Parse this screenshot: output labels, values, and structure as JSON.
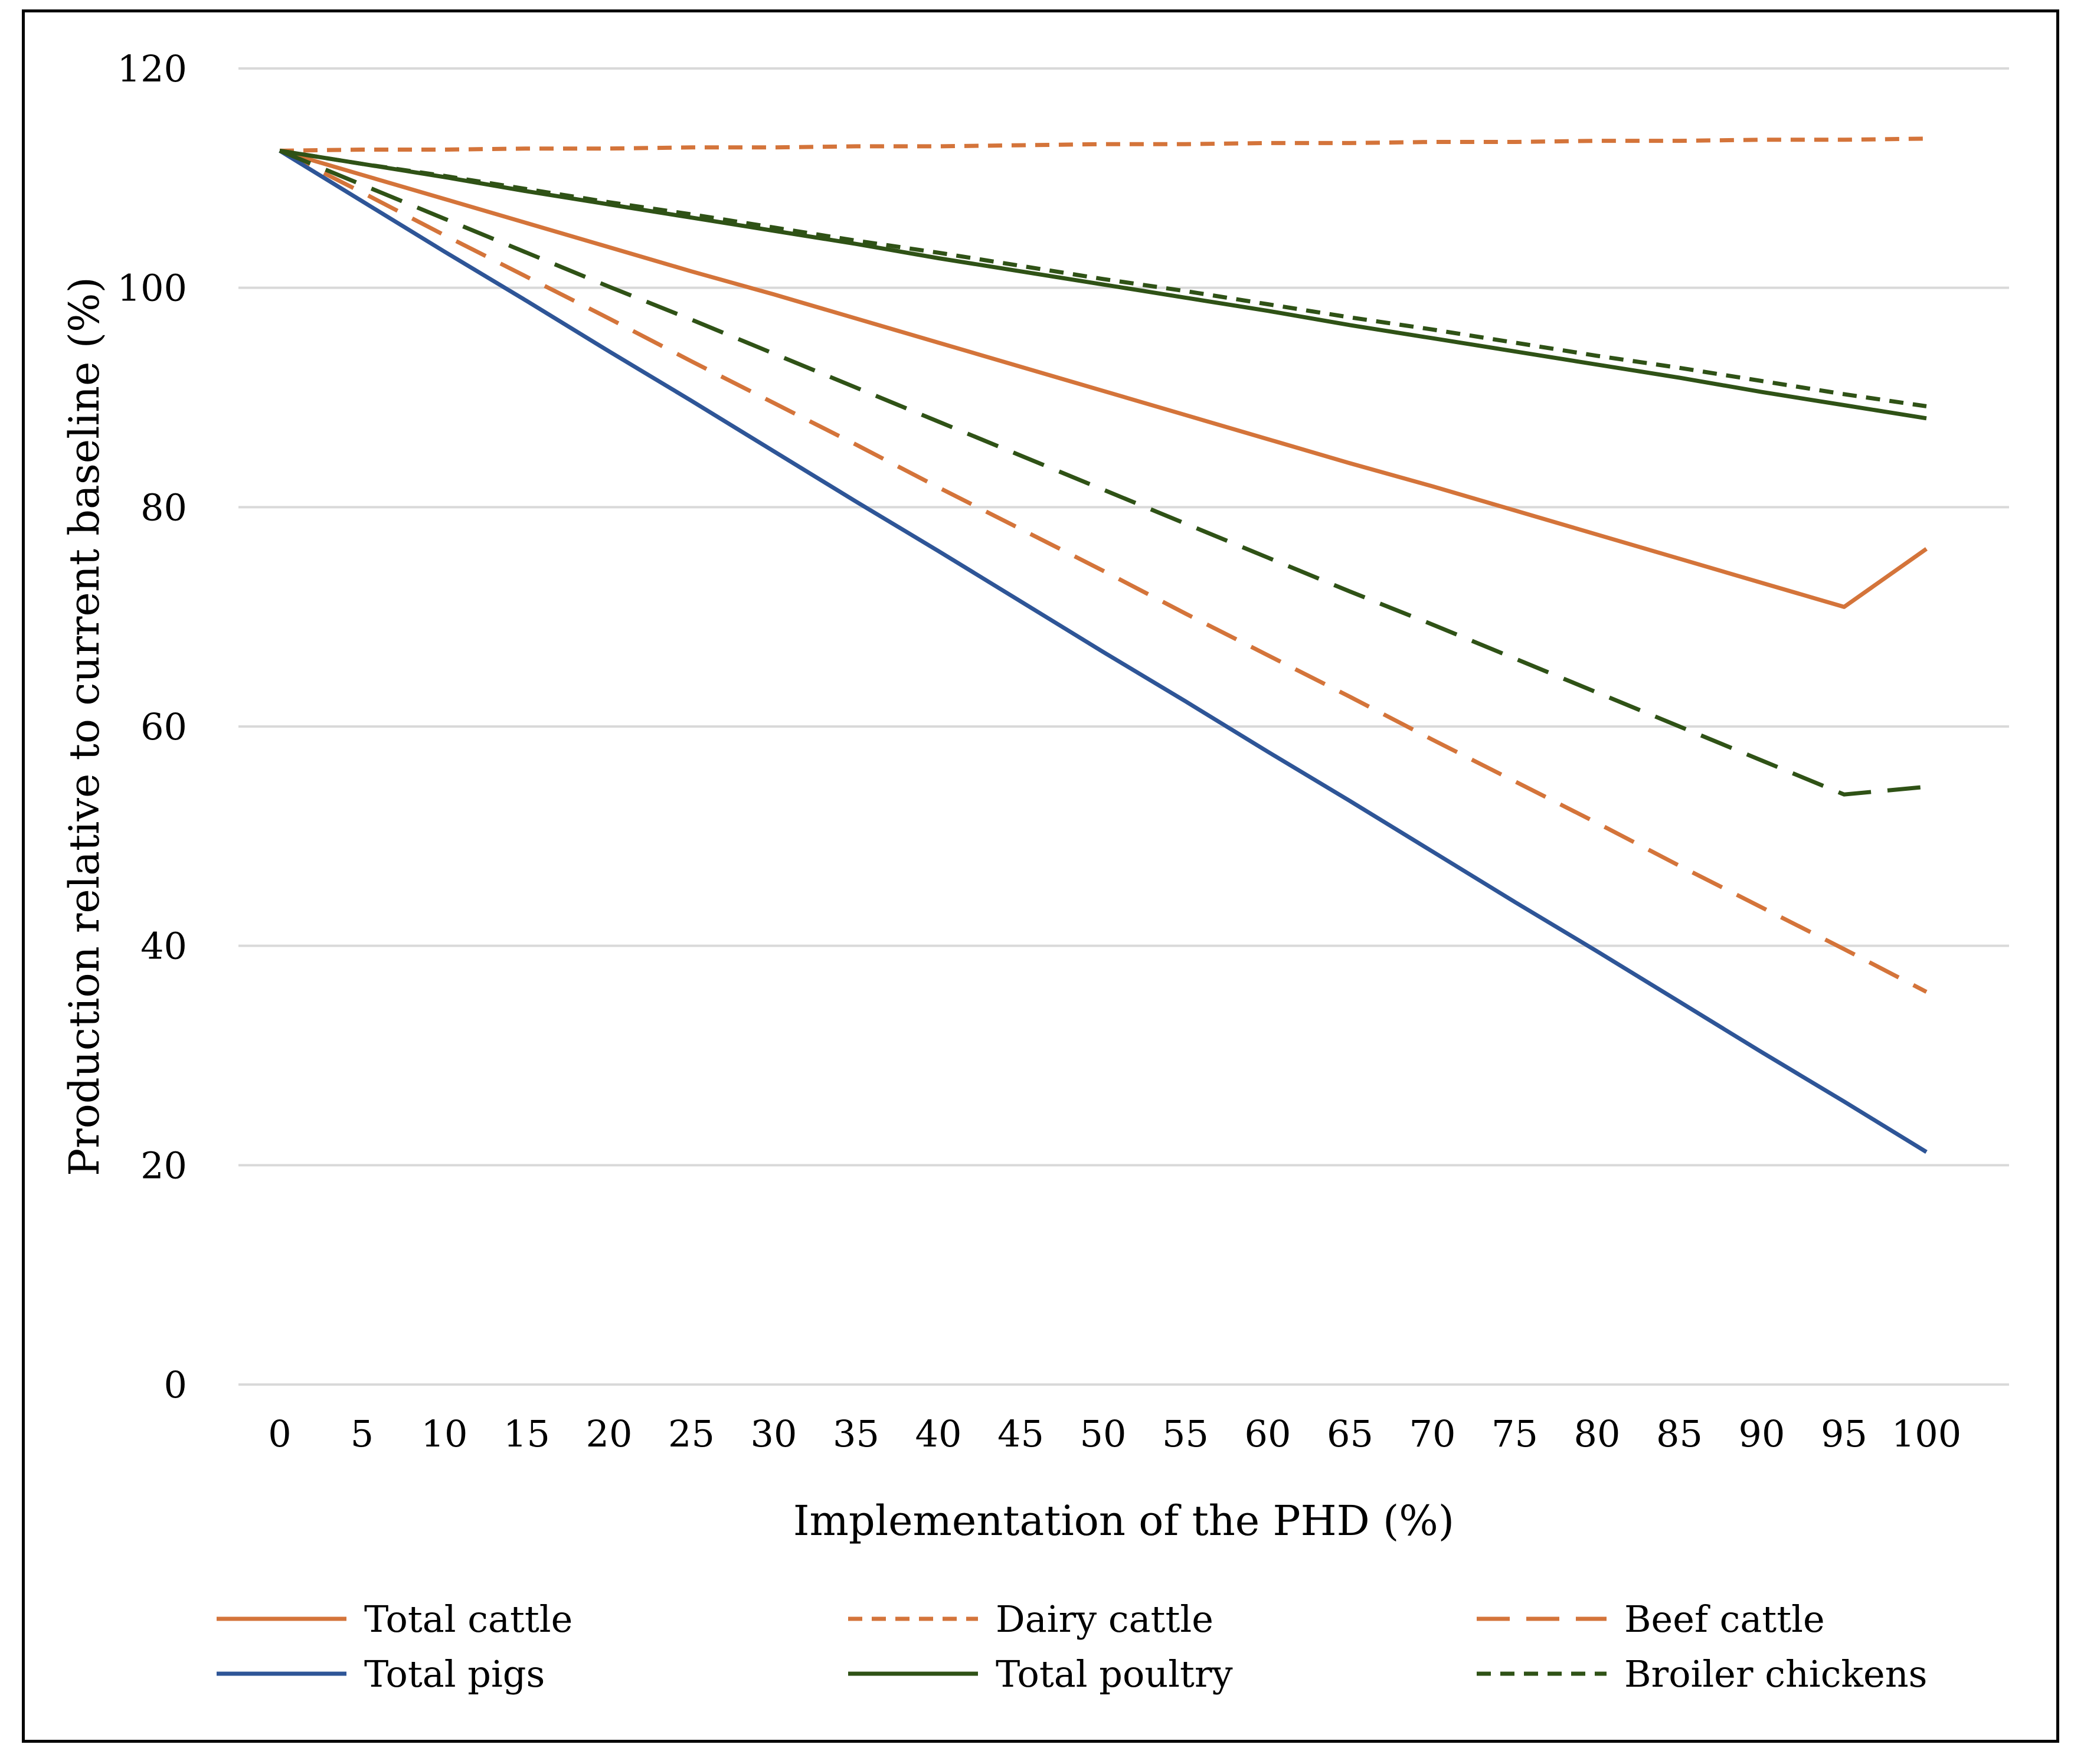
{
  "chart_data": {
    "type": "line",
    "title": "",
    "xlabel": "Implementation of the PHD (%)",
    "ylabel": "Production relative to current baseline (%)",
    "x": [
      0,
      5,
      10,
      15,
      20,
      25,
      30,
      35,
      40,
      45,
      50,
      55,
      60,
      65,
      70,
      75,
      80,
      85,
      90,
      95,
      100
    ],
    "xticklabels": [
      "0",
      "5",
      "10",
      "15",
      "20",
      "25",
      "30",
      "35",
      "40",
      "45",
      "50",
      "55",
      "60",
      "65",
      "70",
      "75",
      "80",
      "85",
      "90",
      "95",
      "100"
    ],
    "ylim": [
      0,
      120
    ],
    "yticks": [
      0,
      20,
      40,
      60,
      80,
      100,
      120
    ],
    "yticklabels": [
      "0",
      "20",
      "40",
      "60",
      "80",
      "100",
      "120"
    ],
    "grid": true,
    "legend_position": "bottom",
    "series": [
      {
        "name": "Total cattle",
        "color": "#D4743A",
        "dash": "solid",
        "values": [
          112.5,
          110.3,
          108.1,
          105.9,
          103.7,
          101.5,
          99.4,
          97.2,
          95.0,
          92.8,
          90.6,
          88.4,
          86.2,
          84.0,
          81.9,
          79.7,
          77.5,
          75.3,
          73.1,
          70.9,
          76.2
        ]
      },
      {
        "name": "Dairy cattle",
        "color": "#D4743A",
        "dash": "short",
        "values": [
          112.5,
          112.6,
          112.6,
          112.7,
          112.7,
          112.8,
          112.8,
          112.9,
          112.9,
          113.0,
          113.1,
          113.1,
          113.2,
          113.2,
          113.3,
          113.3,
          113.4,
          113.4,
          113.5,
          113.5,
          113.6
        ]
      },
      {
        "name": "Beef cattle",
        "color": "#D4743A",
        "dash": "long",
        "values": [
          112.5,
          108.7,
          104.8,
          101.0,
          97.2,
          93.3,
          89.5,
          85.7,
          81.8,
          78.0,
          74.2,
          70.3,
          66.5,
          62.7,
          58.8,
          55.0,
          51.2,
          47.3,
          43.5,
          39.7,
          35.8
        ]
      },
      {
        "name": "Total pigs",
        "color": "#2E5597",
        "dash": "solid",
        "values": [
          112.5,
          107.9,
          103.3,
          98.8,
          94.2,
          89.7,
          85.1,
          80.5,
          76.0,
          71.4,
          66.8,
          62.3,
          57.7,
          53.2,
          48.6,
          44.0,
          39.5,
          34.9,
          30.3,
          25.8,
          21.2
        ]
      },
      {
        "name": "Total poultry",
        "color": "#2F5216",
        "dash": "solid",
        "values": [
          112.5,
          111.3,
          110.1,
          108.8,
          107.6,
          106.4,
          105.2,
          104.0,
          102.7,
          101.5,
          100.3,
          99.1,
          97.9,
          96.6,
          95.4,
          94.2,
          93.0,
          91.8,
          90.5,
          89.3,
          88.1
        ]
      },
      {
        "name": "Broiler chickens",
        "color": "#2F5216",
        "dash": "short",
        "values": [
          112.5,
          111.3,
          110.2,
          109.0,
          107.8,
          106.7,
          105.5,
          104.3,
          103.2,
          102.0,
          100.8,
          99.7,
          98.5,
          97.3,
          96.2,
          95.0,
          93.8,
          92.7,
          91.5,
          90.3,
          89.2
        ]
      },
      {
        "name": "",
        "color": "#2F5216",
        "dash": "long",
        "values": [
          112.5,
          109.4,
          106.3,
          103.2,
          100.1,
          97.1,
          94.0,
          90.9,
          87.8,
          84.7,
          81.6,
          78.5,
          75.4,
          72.3,
          69.3,
          66.2,
          63.1,
          60.0,
          56.9,
          53.8,
          54.5
        ]
      }
    ]
  }
}
